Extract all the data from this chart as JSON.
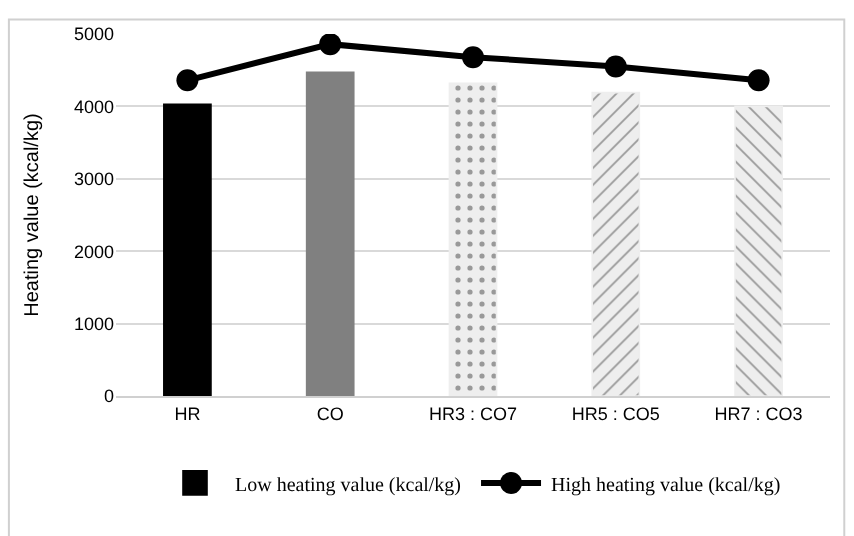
{
  "chart_data": {
    "type": "bar",
    "ylabel": "Heating value (kcal/kg)",
    "categories": [
      "HR",
      "CO",
      "HR3 : CO7",
      "HR5 : CO5",
      "HR7 : CO3"
    ],
    "series": [
      {
        "name": "Low heating value (kcal/kg)",
        "colors": [
          "#000000",
          "#808080",
          "#eeeeee",
          "#eeeeee",
          "#eeeeee"
        ],
        "values": [
          4030,
          4470,
          4320,
          4190,
          4000
        ]
      },
      {
        "name": "High heating value (kcal/kg)",
        "type": "line",
        "color": "#000000",
        "values": [
          4360,
          4860,
          4680,
          4550,
          4360
        ]
      }
    ],
    "ylim": [
      0,
      5000
    ],
    "yticks": [
      0,
      1000,
      2000,
      3000,
      4000,
      5000
    ],
    "grid": "y",
    "legend": "bottom",
    "marker": "circle"
  }
}
